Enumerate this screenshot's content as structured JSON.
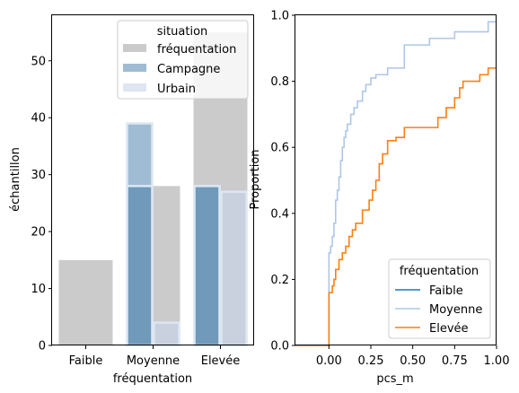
{
  "colors": {
    "freq": "#a9a9a9",
    "campagne": "#5f8fb7",
    "urbain": "#c6d6e9",
    "faible": "#1f77b4",
    "moyenne": "#aec7e8",
    "elevee": "#ff7f0e"
  },
  "chart_data": [
    {
      "type": "bar",
      "xlabel": "fréquentation",
      "ylabel": "échantillon",
      "categories": [
        "Faible",
        "Moyenne",
        "Elevée"
      ],
      "ylim": [
        0,
        58
      ],
      "yticks": [
        "0",
        "10",
        "20",
        "30",
        "40",
        "50"
      ],
      "legend": {
        "title": "situation",
        "placement": "upper right",
        "entries": [
          "fréquentation",
          "Campagne",
          "Urbain"
        ]
      },
      "series": [
        {
          "name": "fréquentation",
          "values": [
            15,
            28,
            55
          ]
        },
        {
          "name": "Campagne",
          "values": [
            0,
            39,
            28
          ]
        },
        {
          "name": "Campagne",
          "values": [
            0,
            28,
            28
          ]
        },
        {
          "name": "Urbain",
          "values": [
            0,
            4,
            27
          ]
        }
      ]
    },
    {
      "type": "line",
      "subtype": "ecdf",
      "xlabel": "pcs_m",
      "ylabel": "Proportion",
      "xlim": [
        -0.2,
        1.0
      ],
      "ylim": [
        0,
        1.0
      ],
      "xticks": [
        "0.00",
        "0.25",
        "0.50",
        "0.75",
        "1.00"
      ],
      "yticks": [
        "0.0",
        "0.2",
        "0.4",
        "0.6",
        "0.8",
        "1.0"
      ],
      "legend": {
        "title": "fréquentation",
        "placement": "lower right",
        "entries": [
          "Faible",
          "Moyenne",
          "Elevée"
        ]
      },
      "series": [
        {
          "name": "Faible",
          "x": [],
          "y": []
        },
        {
          "name": "Moyenne",
          "x": [
            -0.2,
            0.0,
            0.0,
            0.01,
            0.02,
            0.03,
            0.04,
            0.05,
            0.06,
            0.07,
            0.08,
            0.09,
            0.1,
            0.11,
            0.13,
            0.15,
            0.17,
            0.2,
            0.22,
            0.25,
            0.28,
            0.35,
            0.45,
            0.6,
            0.75,
            0.95,
            1.0
          ],
          "y": [
            0,
            0,
            0.28,
            0.3,
            0.33,
            0.37,
            0.44,
            0.47,
            0.51,
            0.56,
            0.6,
            0.63,
            0.65,
            0.67,
            0.7,
            0.72,
            0.74,
            0.77,
            0.79,
            0.81,
            0.82,
            0.84,
            0.91,
            0.93,
            0.95,
            0.98,
            0.98
          ]
        },
        {
          "name": "Elevée",
          "x": [
            -0.2,
            0.0,
            0.0,
            0.02,
            0.03,
            0.04,
            0.06,
            0.08,
            0.1,
            0.12,
            0.14,
            0.16,
            0.2,
            0.24,
            0.26,
            0.28,
            0.3,
            0.32,
            0.35,
            0.4,
            0.45,
            0.5,
            0.55,
            0.65,
            0.7,
            0.75,
            0.78,
            0.8,
            0.9,
            0.95,
            1.0
          ],
          "y": [
            0,
            0,
            0.16,
            0.18,
            0.2,
            0.23,
            0.26,
            0.28,
            0.3,
            0.33,
            0.35,
            0.37,
            0.41,
            0.44,
            0.47,
            0.5,
            0.55,
            0.58,
            0.62,
            0.63,
            0.66,
            0.66,
            0.66,
            0.69,
            0.72,
            0.75,
            0.78,
            0.8,
            0.82,
            0.84,
            0.84
          ]
        }
      ]
    }
  ]
}
